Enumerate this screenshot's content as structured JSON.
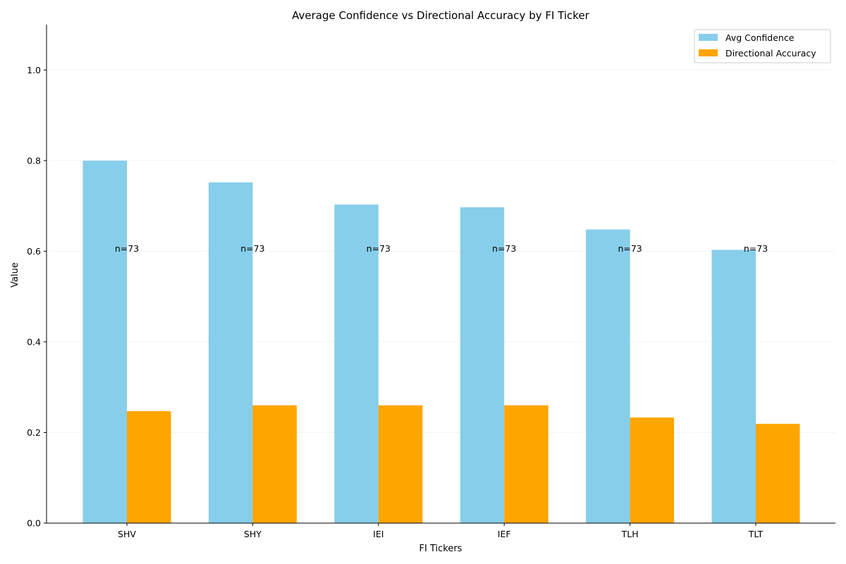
{
  "chart_data": {
    "type": "bar",
    "title": "Average Confidence vs Directional Accuracy by FI Ticker",
    "xlabel": "FI Tickers",
    "ylabel": "Value",
    "categories": [
      "SHV",
      "SHY",
      "IEI",
      "IEF",
      "TLH",
      "TLT"
    ],
    "series": [
      {
        "name": "Avg Confidence",
        "color": "#87CEEB",
        "values": [
          0.8,
          0.752,
          0.703,
          0.697,
          0.648,
          0.603
        ]
      },
      {
        "name": "Directional Accuracy",
        "color": "#FFA500",
        "values": [
          0.247,
          0.26,
          0.26,
          0.26,
          0.233,
          0.219
        ]
      }
    ],
    "annotations": [
      "n=73",
      "n=73",
      "n=73",
      "n=73",
      "n=73",
      "n=73"
    ],
    "annotation_y": 0.6,
    "ylim": [
      0,
      1.1
    ],
    "yticks": [
      0.0,
      0.2,
      0.4,
      0.6,
      0.8,
      1.0
    ],
    "ytick_labels": [
      "0.0",
      "0.2",
      "0.4",
      "0.6",
      "0.8",
      "1.0"
    ],
    "grid": "y",
    "legend": "upper right"
  }
}
